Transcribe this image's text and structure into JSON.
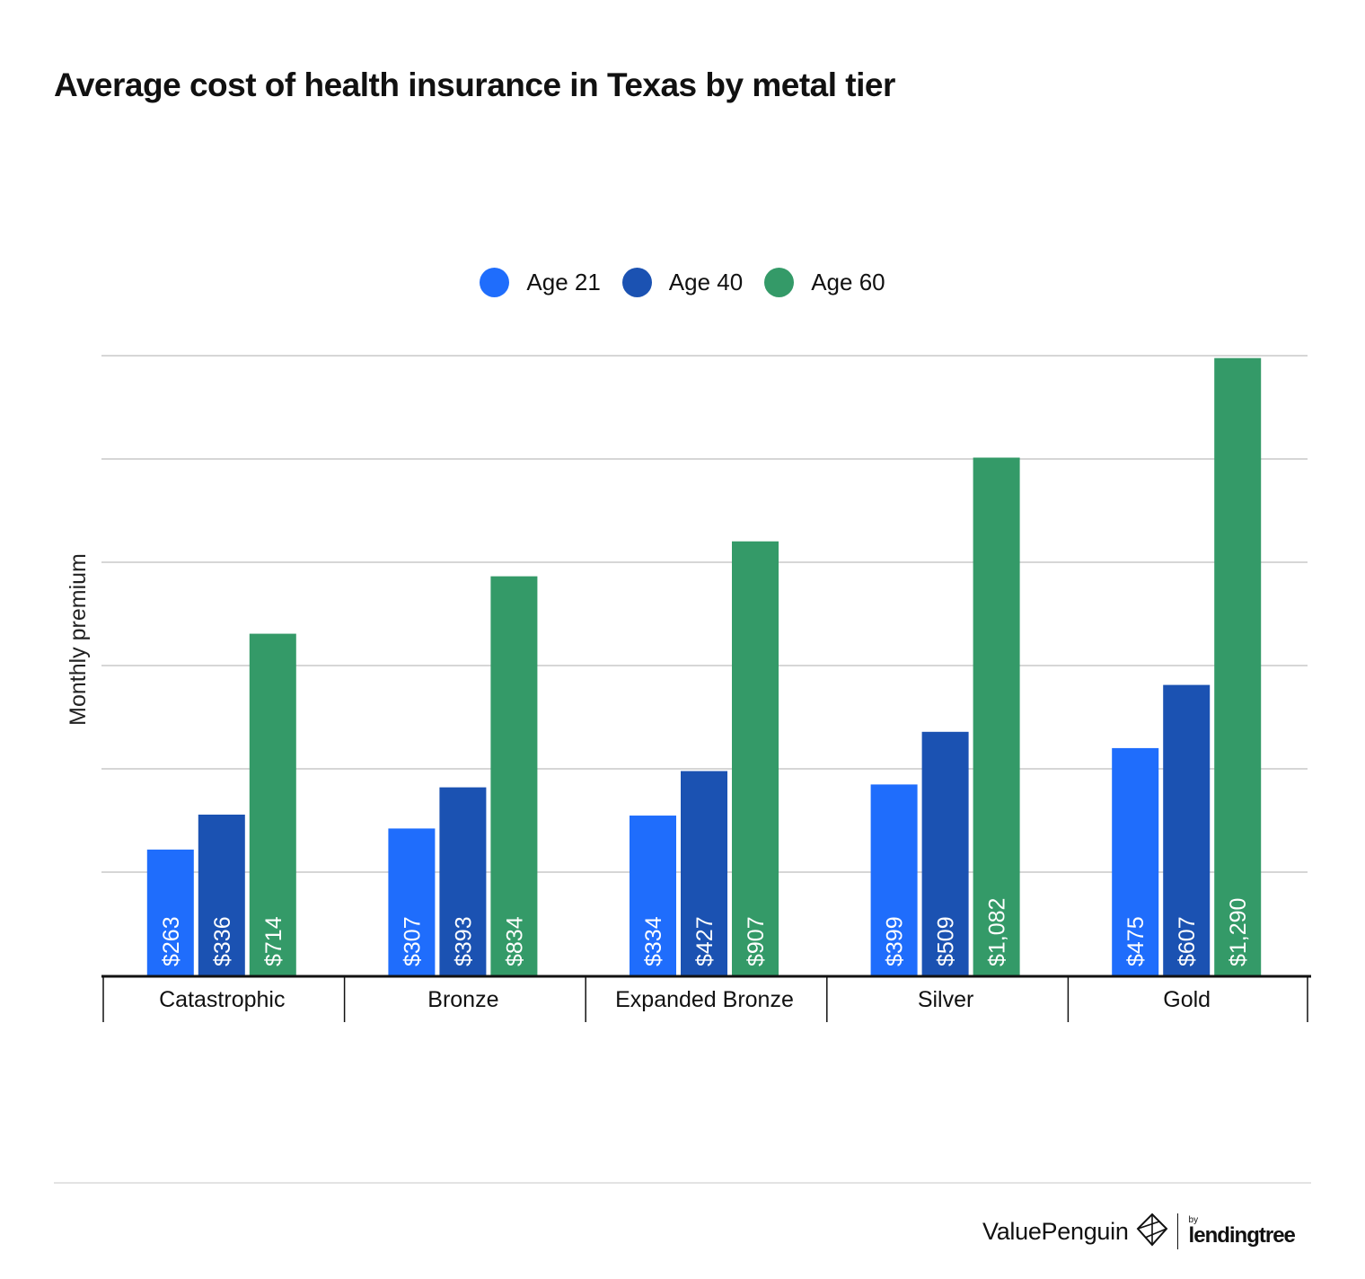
{
  "title": "Average cost of health insurance in Texas by metal tier",
  "chart_data": {
    "type": "bar",
    "title": "Average cost of health insurance in Texas by metal tier",
    "xlabel": "",
    "ylabel": "Monthly premium",
    "categories": [
      "Catastrophic",
      "Bronze",
      "Expanded Bronze",
      "Silver",
      "Gold"
    ],
    "series": [
      {
        "name": "Age 21",
        "color": "#1f6dfc",
        "values": [
          263,
          307,
          334,
          399,
          475
        ],
        "labels": [
          "$263",
          "$307",
          "$334",
          "$399",
          "$475"
        ]
      },
      {
        "name": "Age 40",
        "color": "#1b52b2",
        "values": [
          336,
          393,
          427,
          509,
          607
        ],
        "labels": [
          "$336",
          "$393",
          "$427",
          "$509",
          "$607"
        ]
      },
      {
        "name": "Age 60",
        "color": "#349a68",
        "values": [
          714,
          834,
          907,
          1082,
          1290
        ],
        "labels": [
          "$714",
          "$834",
          "$907",
          "$1,082",
          "$1,290"
        ]
      }
    ],
    "ylim": [
      0,
      1400
    ],
    "grid": true,
    "legend": "top-center"
  },
  "brand": {
    "name": "ValuePenguin",
    "by": "by",
    "partner": "lendingtree"
  }
}
